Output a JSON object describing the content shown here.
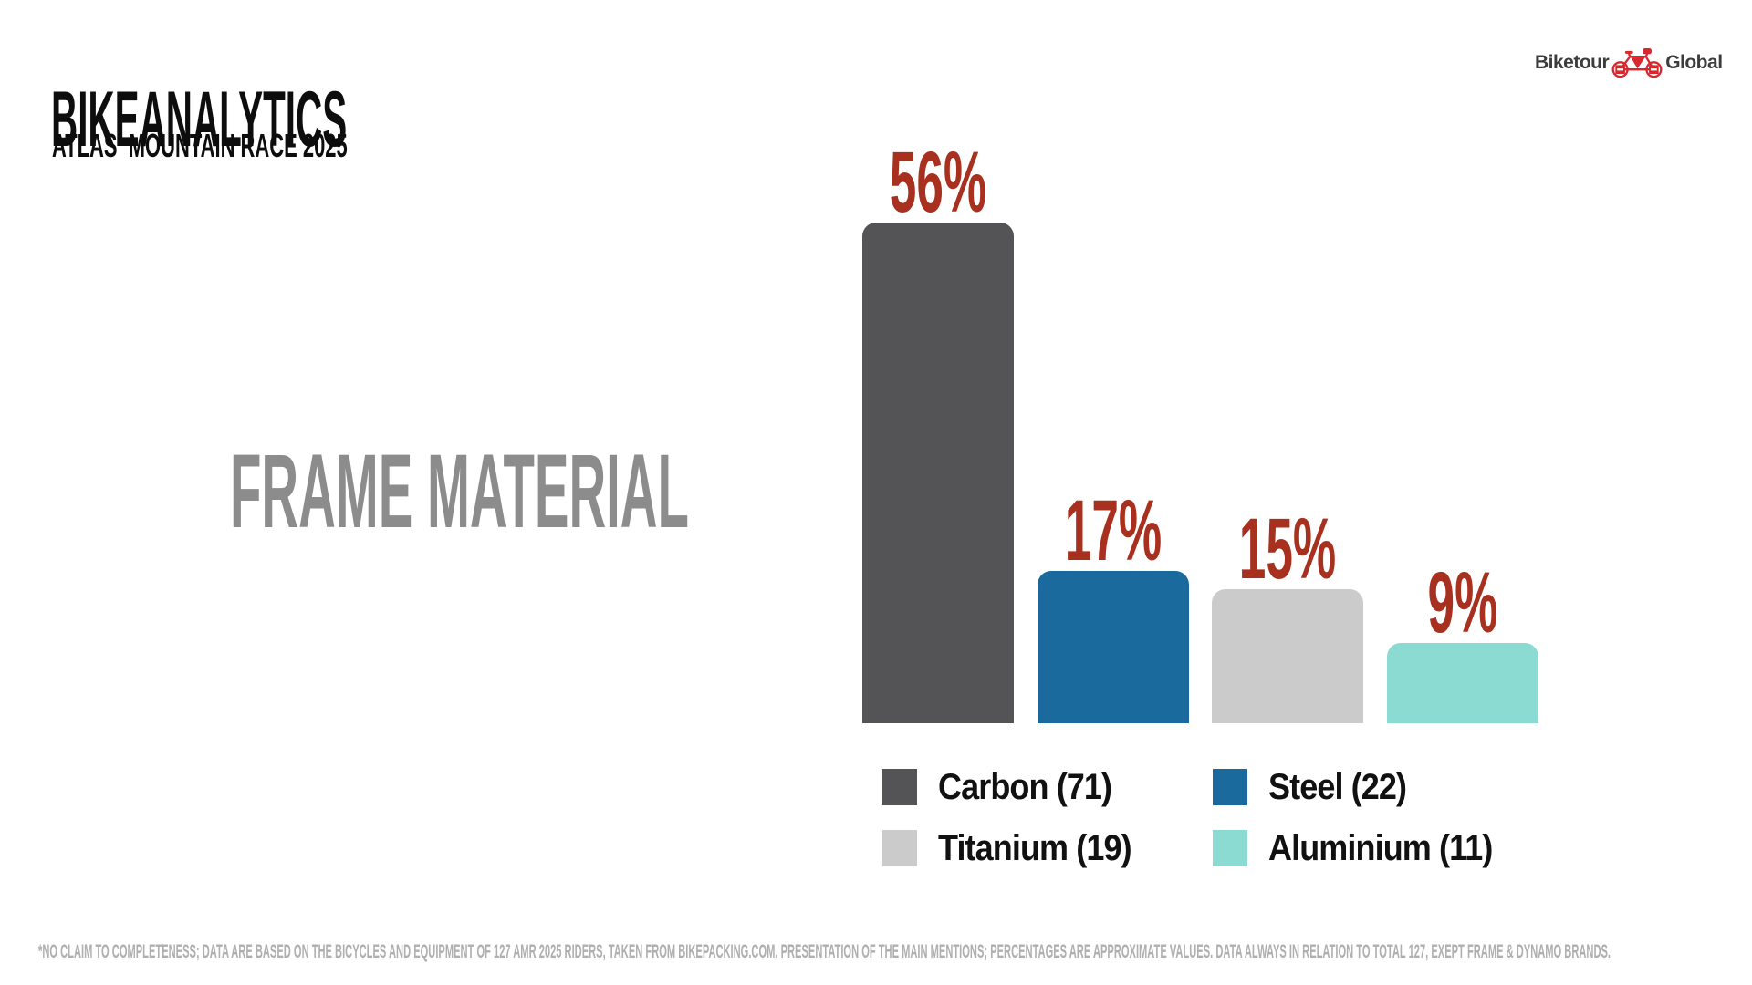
{
  "header": {
    "title": "BIKEANALYTICS",
    "subtitle": "ATLAS  MOUNTAIN RACE 2025"
  },
  "logo": {
    "text_left": "Biketour",
    "text_right": "Global",
    "icon": "bicycle-icon",
    "icon_color": "#d7282e",
    "text_color": "#3c3c3c"
  },
  "chart_data": {
    "type": "bar",
    "title": "FRAME MATERIAL",
    "categories": [
      "Carbon",
      "Steel",
      "Titanium",
      "Aluminium"
    ],
    "values": [
      56,
      17,
      15,
      9
    ],
    "value_labels": [
      "56%",
      "17%",
      "15%",
      "9%"
    ],
    "counts": [
      71,
      22,
      19,
      11
    ],
    "colors": [
      "#545456",
      "#1a6a9d",
      "#cbcbcb",
      "#8bdbd2"
    ],
    "label_color": "#a8301f",
    "ylim": [
      0,
      60
    ],
    "grid": false,
    "axes_visible": false,
    "legend_position": "bottom",
    "legend": [
      {
        "label": "Carbon (71)",
        "color": "#545456"
      },
      {
        "label": "Steel (22)",
        "color": "#1a6a9d"
      },
      {
        "label": "Titanium (19)",
        "color": "#cbcbcb"
      },
      {
        "label": "Aluminium (11)",
        "color": "#8bdbd2"
      }
    ]
  },
  "footnote": "*NO CLAIM TO COMPLETENESS; DATA ARE BASED ON THE BICYCLES AND EQUIPMENT OF 127 AMR 2025 RIDERS, TAKEN FROM BIKEPACKING.COM. PRESENTATION OF THE MAIN MENTIONS; PERCENTAGES ARE APPROXIMATE VALUES. DATA ALWAYS IN RELATION TO TOTAL 127, EXEPT FRAME & DYNAMO BRANDS."
}
